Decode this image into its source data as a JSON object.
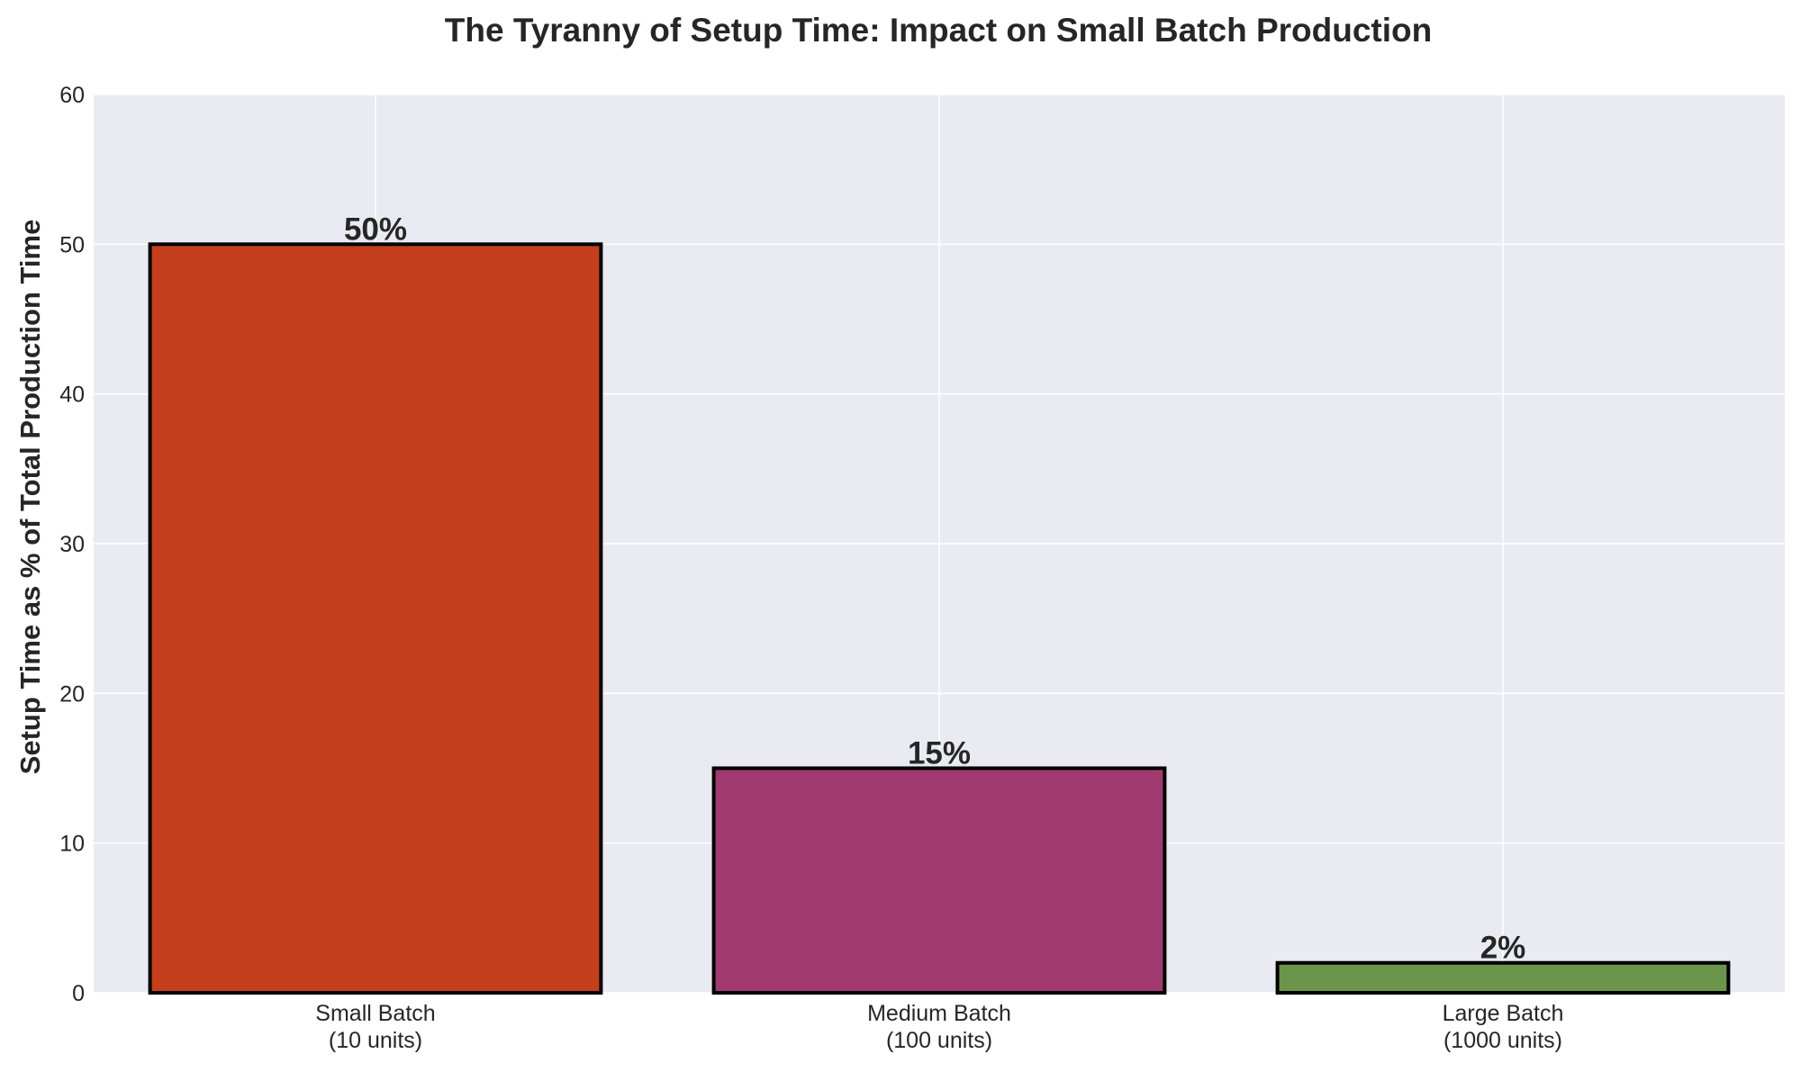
{
  "chart_data": {
    "type": "bar",
    "title": "The Tyranny of Setup Time: Impact on Small Batch Production",
    "xlabel": "",
    "ylabel": "Setup Time as % of Total Production Time",
    "ylim": [
      0,
      60
    ],
    "yticks": [
      0,
      10,
      20,
      30,
      40,
      50,
      60
    ],
    "grid": true,
    "categories": [
      [
        "Small Batch",
        "(10 units)"
      ],
      [
        "Medium Batch",
        "(100 units)"
      ],
      [
        "Large Batch",
        "(1000 units)"
      ]
    ],
    "values": [
      50,
      15,
      2
    ],
    "data_labels": [
      "50%",
      "15%",
      "2%"
    ],
    "colors": [
      "#C53F1C",
      "#A13A70",
      "#6A954B"
    ],
    "plot_background": "#EAEAF2",
    "grid_color": "#FFFFFF",
    "edge_color": "#000000"
  }
}
